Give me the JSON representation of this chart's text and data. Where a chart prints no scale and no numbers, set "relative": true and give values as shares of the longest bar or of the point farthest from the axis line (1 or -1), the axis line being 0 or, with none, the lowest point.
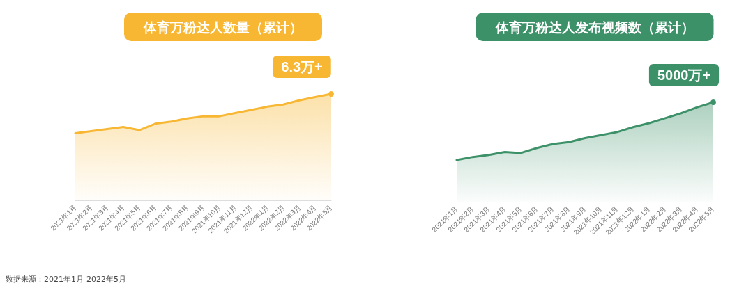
{
  "chart_data": [
    {
      "type": "area",
      "title": "体育万粉达人数量（累计）",
      "relative": true,
      "categories": [
        "2021年1月",
        "2021年2月",
        "2021年3月",
        "2021年4月",
        "2021年5月",
        "2021年6月",
        "2021年7月",
        "2021年8月",
        "2021年9月",
        "2021年10月",
        "2021年11月",
        "2021年12月",
        "2022年1月",
        "2022年2月",
        "2022年3月",
        "2022年4月",
        "2022年5月"
      ],
      "series": [
        {
          "color": "#f7b733",
          "values": [
            0.63,
            0.65,
            0.67,
            0.69,
            0.66,
            0.72,
            0.74,
            0.77,
            0.79,
            0.79,
            0.82,
            0.85,
            0.88,
            0.9,
            0.94,
            0.97,
            1
          ]
        }
      ],
      "annotations": [
        {
          "text": "6.3万+",
          "x": "2022年5月",
          "y": 1
        },
        "数据来源：2021年1月-2022年5月"
      ]
    },
    {
      "type": "area",
      "title": "体育万粉达人发布视频数（累计）",
      "relative": true,
      "categories": [
        "2021年1月",
        "2021年2月",
        "2021年3月",
        "2021年4月",
        "2021年5月",
        "2021年6月",
        "2021年7月",
        "2021年8月",
        "2021年9月",
        "2021年10月",
        "2021年11月",
        "2021年12月",
        "2022年1月",
        "2022年2月",
        "2022年3月",
        "2022年4月",
        "2022年5月"
      ],
      "series": [
        {
          "color": "#3d9169",
          "values": [
            0.42,
            0.45,
            0.47,
            0.5,
            0.49,
            0.54,
            0.58,
            0.6,
            0.64,
            0.67,
            0.7,
            0.75,
            0.79,
            0.84,
            0.89,
            0.95,
            1
          ]
        }
      ],
      "annotations": [
        {
          "text": "5000万+",
          "x": "2022年5月",
          "y": 1
        }
      ]
    }
  ]
}
